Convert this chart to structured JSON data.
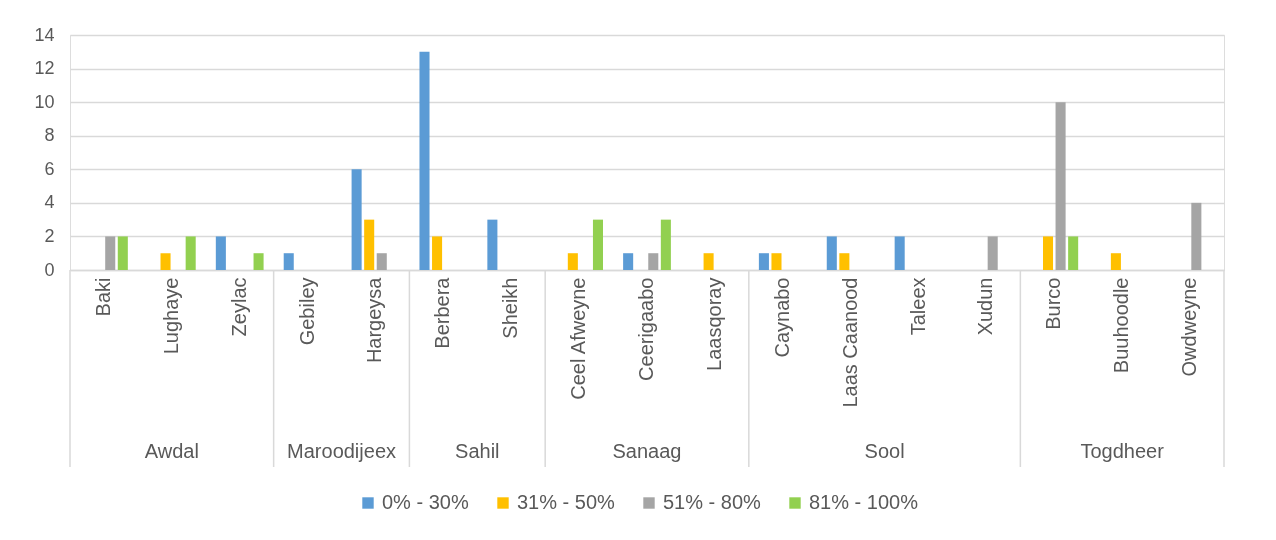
{
  "chart_data": {
    "type": "bar",
    "categories": [
      "Baki",
      "Lughaye",
      "Zeylac",
      "Gebiley",
      "Hargeysa",
      "Berbera",
      "Sheikh",
      "Ceel Afweyne",
      "Ceerigaabo",
      "Laasqoray",
      "Caynabo",
      "Laas Caanood",
      "Taleex",
      "Xudun",
      "Burco",
      "Buuhoodle",
      "Owdweyne"
    ],
    "series": [
      {
        "name": "0% - 30%",
        "color": "#5b9bd5",
        "values": [
          null,
          null,
          2,
          1,
          6,
          13,
          3,
          null,
          1,
          null,
          1,
          2,
          2,
          null,
          null,
          null,
          null
        ]
      },
      {
        "name": "31% - 50%",
        "color": "#ffc000",
        "values": [
          null,
          1,
          null,
          null,
          3,
          2,
          null,
          1,
          null,
          1,
          1,
          1,
          null,
          null,
          2,
          1,
          null
        ]
      },
      {
        "name": "51% - 80%",
        "color": "#a5a5a5",
        "values": [
          2,
          null,
          null,
          null,
          1,
          null,
          null,
          null,
          1,
          null,
          null,
          null,
          null,
          2,
          10,
          null,
          4
        ]
      },
      {
        "name": "81% - 100%",
        "color": "#92d050",
        "values": [
          2,
          2,
          1,
          null,
          null,
          null,
          null,
          3,
          3,
          null,
          null,
          null,
          null,
          null,
          2,
          null,
          null
        ]
      }
    ],
    "annotations": [
      "Awdal",
      "Maroodijeex",
      "Sahil",
      "Sanaag",
      "Sool",
      "Togdheer"
    ],
    "ylim": [
      0,
      14
    ],
    "yticks": [
      0,
      2,
      4,
      6,
      8,
      10,
      12,
      14
    ],
    "grid": "y",
    "legend": "bottom"
  }
}
